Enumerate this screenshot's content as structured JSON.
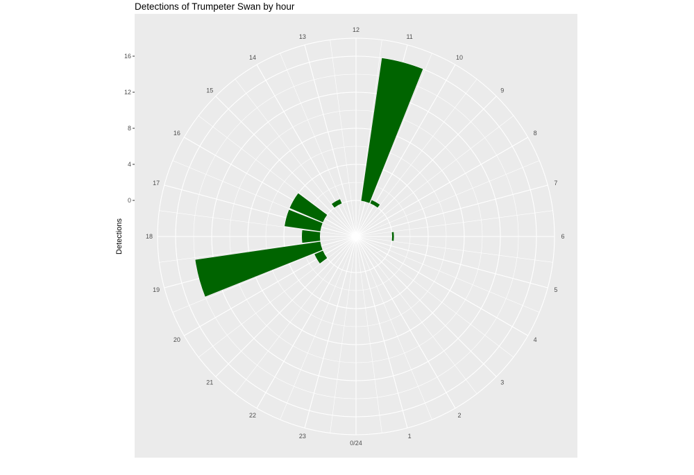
{
  "chart_data": {
    "type": "bar",
    "coord": "polar",
    "title": "Detections of Trumpeter Swan by hour",
    "xlabel": "",
    "ylabel": "Detections",
    "colors": {
      "bar": "#006400",
      "panel": "#ebebeb",
      "grid": "#ffffff"
    },
    "hour_labels": [
      "0/24",
      "1",
      "2",
      "3",
      "4",
      "5",
      "6",
      "7",
      "8",
      "9",
      "10",
      "11",
      "12",
      "13",
      "14",
      "15",
      "16",
      "17",
      "18",
      "19",
      "20",
      "21",
      "22",
      "23"
    ],
    "y_ticks": [
      0,
      4,
      8,
      12,
      16
    ],
    "y_tick_labels": [
      "0",
      "4",
      "8",
      "12",
      "16"
    ],
    "ylim": [
      -4,
      18
    ],
    "x_domain": [
      0,
      24
    ],
    "bars": [
      {
        "hour": 0,
        "value": 0
      },
      {
        "hour": 1,
        "value": 0
      },
      {
        "hour": 2,
        "value": 0
      },
      {
        "hour": 3,
        "value": 0
      },
      {
        "hour": 4,
        "value": 0
      },
      {
        "hour": 5,
        "value": 0
      },
      {
        "hour": 6,
        "value": 0.2
      },
      {
        "hour": 7,
        "value": 0
      },
      {
        "hour": 8,
        "value": 0
      },
      {
        "hour": 9,
        "value": 0
      },
      {
        "hour": 10,
        "value": 0.4
      },
      {
        "hour": 11,
        "value": 16
      },
      {
        "hour": 12,
        "value": 0
      },
      {
        "hour": 13,
        "value": 0
      },
      {
        "hour": 14,
        "value": 0.5
      },
      {
        "hour": 15,
        "value": 0
      },
      {
        "hour": 16,
        "value": 4
      },
      {
        "hour": 17,
        "value": 4
      },
      {
        "hour": 18,
        "value": 2
      },
      {
        "hour": 19,
        "value": 14
      },
      {
        "hour": 20,
        "value": 1
      },
      {
        "hour": 21,
        "value": 0
      },
      {
        "hour": 22,
        "value": 0
      },
      {
        "hour": 23,
        "value": 0
      }
    ]
  }
}
